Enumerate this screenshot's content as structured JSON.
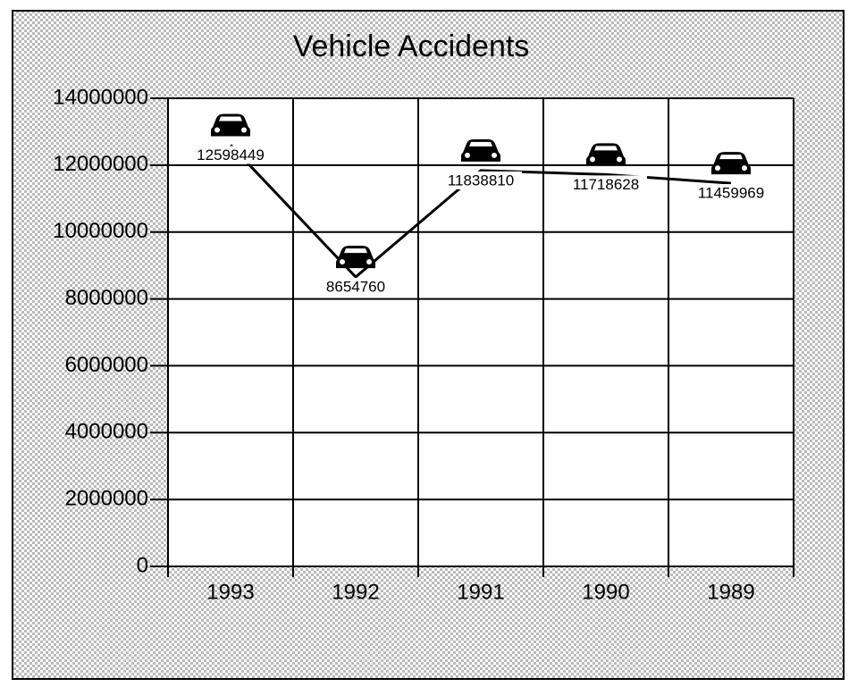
{
  "chart_data": {
    "type": "line",
    "title": "Vehicle Accidents",
    "categories": [
      "1993",
      "1992",
      "1991",
      "1990",
      "1989"
    ],
    "values": [
      12598449,
      8654760,
      11838810,
      11718628,
      11459969
    ],
    "color": "#000000",
    "ylim": [
      0,
      14000000
    ],
    "yticks": [
      0,
      2000000,
      4000000,
      6000000,
      8000000,
      10000000,
      12000000,
      14000000
    ],
    "grid": true
  }
}
